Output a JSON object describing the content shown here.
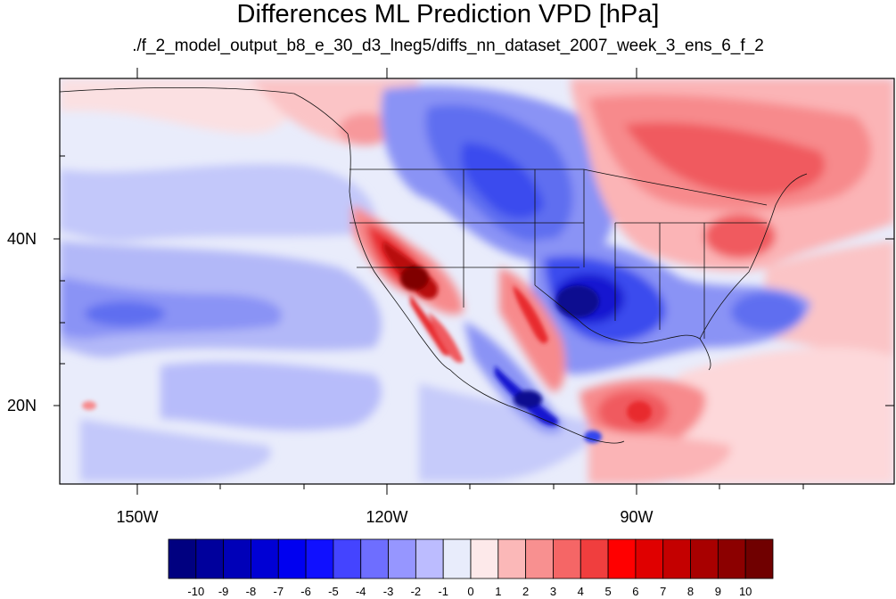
{
  "title": "Differences ML Prediction VPD [hPa]",
  "subtitle": "./f_2_model_output_b8_e_30_d3_lneg5/diffs_nn_dataset_2007_week_3_ens_6_f_2",
  "map": {
    "lon_ticks": [
      "150W",
      "120W",
      "90W"
    ],
    "lat_ticks": [
      "40N",
      "20N"
    ],
    "colors": {
      "ocean_light": "#e9ecfb",
      "blue_pale": "#b7bcfa",
      "blue_light": "#8c95f7",
      "blue_mid": "#5f6ef0",
      "blue": "#3344ee",
      "blue_dark": "#1010c8",
      "blue_deep": "#0a0a90",
      "pink_pale": "#fde9ea",
      "pink": "#fbb4b6",
      "red_light": "#f78a8c",
      "red_mid": "#f05a5e",
      "red": "#e82a2e",
      "red_dark": "#b80a0e",
      "red_deep": "#800000"
    }
  },
  "colorbar": {
    "labels": [
      "-10",
      "-9",
      "-8",
      "-7",
      "-6",
      "-5",
      "-4",
      "-3",
      "-2",
      "-1",
      "0",
      "1",
      "2",
      "3",
      "4",
      "5",
      "6",
      "7",
      "8",
      "9",
      "10"
    ],
    "colors": [
      "#000080",
      "#00009c",
      "#0000b8",
      "#0000d4",
      "#0000f0",
      "#1010ff",
      "#4444ff",
      "#6e6eff",
      "#9696ff",
      "#bcbcff",
      "#e8ecfb",
      "#fde9ea",
      "#fbb8b8",
      "#f89090",
      "#f56666",
      "#f03e3e",
      "#ff0000",
      "#e00000",
      "#c40000",
      "#a80000",
      "#8c0000",
      "#700000"
    ]
  }
}
